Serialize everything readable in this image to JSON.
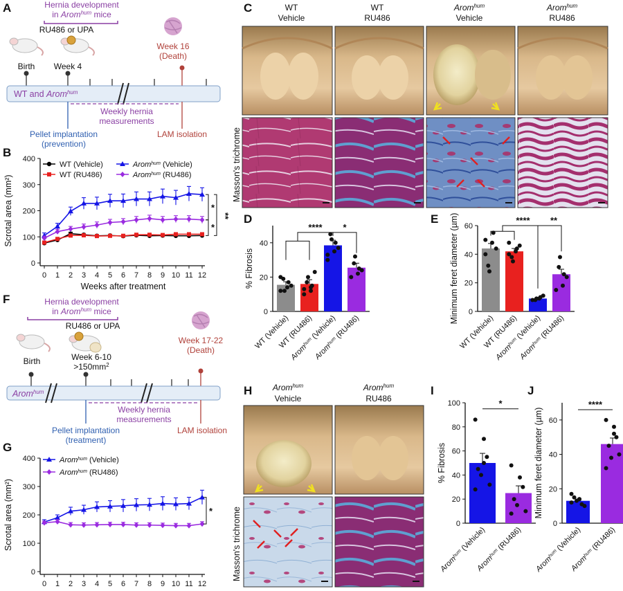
{
  "panels": {
    "A": "A",
    "B": "B",
    "C": "C",
    "D": "D",
    "E": "E",
    "F": "F",
    "G": "G",
    "H": "H",
    "I": "I",
    "J": "J"
  },
  "colors": {
    "wt_vehicle": "#000000",
    "wt_ru486": "#e8211f",
    "arom_vehicle": "#1515e6",
    "arom_ru486": "#9a2be0",
    "wt_bar": "#8c8c8c",
    "purple_text": "#8a3fa3",
    "blue_text": "#2f5fb0",
    "red_text": "#b0413a",
    "timeline_fill": "#e4edf7",
    "timeline_stroke": "#7f9fc7"
  },
  "timeline_a": {
    "dev_line1": "Hernia development",
    "dev_line2_pre": "in ",
    "dev_line2_sup": "hum",
    "dev_line2_post": " mice",
    "dev_line2_word": "Arom",
    "drug": "RU486 or UPA",
    "birth": "Birth",
    "week4": "Week 4",
    "death1": "Week 16",
    "death2": "(Death)",
    "bar_pre": "WT and ",
    "bar_word": "Arom",
    "bar_sup": "hum",
    "weekly1": "Weekly hernia",
    "weekly2": "measurements",
    "pellet1": "Pellet implantation",
    "pellet2": "(prevention)",
    "lam": "LAM isolation"
  },
  "timeline_f": {
    "dev_line1": "Hernia development",
    "dev_line2_pre": "in ",
    "dev_line2_word": "Arom",
    "dev_line2_sup": "hum",
    "dev_line2_post": " mice",
    "drug": "RU486 or UPA",
    "birth": "Birth",
    "week1": "Week 6-10",
    "week2": ">150mm",
    "death1": "Week 17-22",
    "death2": "(Death)",
    "bar_word": "Arom",
    "bar_sup": "hum",
    "weekly1": "Weekly hernia",
    "weekly2": "measurements",
    "pellet1": "Pellet implantation",
    "pellet2": "(treatment)",
    "lam": "LAM isolation"
  },
  "panel_c": {
    "cols": [
      {
        "l1": "WT",
        "l2": "Vehicle"
      },
      {
        "l1": "WT",
        "l2": "RU486"
      },
      {
        "l1": "Arom",
        "sup": "hum",
        "l2": "Vehicle"
      },
      {
        "l1": "Arom",
        "sup": "hum",
        "l2": "RU486"
      }
    ],
    "row_label": "Masson's trichrome"
  },
  "panel_h": {
    "cols": [
      {
        "l1": "Arom",
        "sup": "hum",
        "l2": "Vehicle"
      },
      {
        "l1": "Arom",
        "sup": "hum",
        "l2": "RU486"
      }
    ],
    "row_label": "Masson's trichrome"
  },
  "chart_data": [
    {
      "id": "B",
      "type": "line",
      "xlabel": "Weeks after treatment",
      "ylabel": "Scrotal area (mm²)",
      "xlim": [
        0,
        12
      ],
      "ylim": [
        0,
        400
      ],
      "yticks": [
        0,
        100,
        200,
        300,
        400
      ],
      "xticks": [
        0,
        1,
        2,
        3,
        4,
        5,
        6,
        7,
        8,
        9,
        10,
        11,
        12
      ],
      "x": [
        0,
        1,
        2,
        3,
        4,
        5,
        6,
        7,
        8,
        9,
        10,
        11,
        12
      ],
      "series": [
        {
          "name": "WT (Vehicle)",
          "values": [
            76,
            88,
            112,
            108,
            104,
            105,
            103,
            106,
            104,
            105,
            104,
            104,
            105
          ],
          "err": [
            4,
            4,
            6,
            5,
            4,
            4,
            4,
            4,
            4,
            4,
            4,
            4,
            4
          ],
          "marker": "circle"
        },
        {
          "name": "WT (RU486)",
          "values": [
            78,
            92,
            105,
            106,
            103,
            104,
            104,
            108,
            108,
            107,
            110,
            110,
            110
          ],
          "err": [
            4,
            4,
            5,
            5,
            4,
            4,
            4,
            4,
            4,
            4,
            4,
            4,
            4
          ],
          "marker": "square"
        },
        {
          "name": "Arom(hum) (Vehicle)",
          "values": [
            105,
            140,
            198,
            228,
            228,
            238,
            238,
            245,
            245,
            255,
            250,
            265,
            262
          ],
          "err": [
            10,
            12,
            16,
            22,
            24,
            25,
            26,
            27,
            27,
            28,
            28,
            28,
            26
          ],
          "marker": "triangle"
        },
        {
          "name": "Arom(hum) (RU486)",
          "values": [
            95,
            120,
            130,
            138,
            145,
            155,
            158,
            165,
            170,
            165,
            168,
            168,
            165
          ],
          "err": [
            8,
            9,
            10,
            11,
            12,
            12,
            12,
            13,
            13,
            13,
            13,
            13,
            13
          ],
          "marker": "diamond"
        }
      ],
      "legend": [
        {
          "main": "WT (Vehicle)"
        },
        {
          "main": "WT (RU486)"
        },
        {
          "pre": "Arom",
          "sup": "hum",
          "post": " (Vehicle)"
        },
        {
          "pre": "Arom",
          "sup": "hum",
          "post": " (RU486)"
        }
      ],
      "sig": [
        "*",
        "**",
        "*"
      ]
    },
    {
      "id": "D",
      "type": "bar",
      "ylabel": "% Fibrosis",
      "ylim": [
        0,
        50
      ],
      "yticks": [
        0,
        20,
        40
      ],
      "categories": [
        {
          "main": "WT (Vehicle)"
        },
        {
          "main": "WT (RU486)"
        },
        {
          "pre": "Arom",
          "sup": "hum",
          "post": " (Vehicle)"
        },
        {
          "pre": "Arom",
          "sup": "hum",
          "post": " (RU486)"
        }
      ],
      "values": [
        15.5,
        16,
        38.5,
        25.5
      ],
      "err": [
        1.8,
        2.5,
        3,
        2.6
      ],
      "points": [
        [
          12,
          14,
          17,
          19,
          12,
          15,
          20
        ],
        [
          10,
          12,
          15,
          17,
          20,
          23,
          13,
          14
        ],
        [
          30,
          35,
          40,
          45,
          42,
          37,
          33
        ],
        [
          20,
          22,
          25,
          28,
          32,
          24
        ]
      ],
      "sig": [
        "****",
        "*"
      ]
    },
    {
      "id": "E",
      "type": "bar",
      "ylabel": "Minimum feret diameter (µm)",
      "ylim": [
        0,
        60
      ],
      "yticks": [
        0,
        20,
        40,
        60
      ],
      "categories": [
        {
          "main": "WT (Vehicle)"
        },
        {
          "main": "WT (RU486)"
        },
        {
          "pre": "Arom",
          "sup": "hum",
          "post": " (Vehicle)"
        },
        {
          "pre": "Arom",
          "sup": "hum",
          "post": " (RU486)"
        }
      ],
      "values": [
        44,
        42,
        9,
        26
      ],
      "err": [
        3.5,
        2,
        0.7,
        3.5
      ],
      "points": [
        [
          50,
          48,
          55,
          32,
          28,
          44,
          40
        ],
        [
          48,
          42,
          44,
          38,
          35,
          46,
          40
        ],
        [
          8,
          9,
          10,
          8,
          9,
          11
        ],
        [
          15,
          18,
          26,
          31,
          38,
          24
        ]
      ],
      "sig": [
        "****",
        "**"
      ]
    },
    {
      "id": "G",
      "type": "line",
      "xlabel": "Weeks after treatment",
      "ylabel": "Scrotal area (mm²)",
      "xlim": [
        0,
        12
      ],
      "ylim": [
        0,
        400
      ],
      "yticks": [
        0,
        100,
        200,
        300,
        400
      ],
      "xticks": [
        0,
        1,
        2,
        3,
        4,
        5,
        6,
        7,
        8,
        9,
        10,
        11,
        12
      ],
      "x": [
        0,
        1,
        2,
        3,
        4,
        5,
        6,
        7,
        8,
        9,
        10,
        11,
        12
      ],
      "series": [
        {
          "name": "Arom(hum) (Vehicle)",
          "values": [
            175,
            190,
            213,
            218,
            228,
            230,
            232,
            235,
            236,
            240,
            238,
            240,
            262
          ],
          "err": [
            8,
            10,
            14,
            16,
            18,
            20,
            22,
            22,
            22,
            24,
            22,
            22,
            25
          ],
          "marker": "triangle"
        },
        {
          "name": "Arom(hum) (RU486)",
          "values": [
            172,
            176,
            165,
            164,
            165,
            166,
            166,
            164,
            164,
            163,
            162,
            162,
            168
          ],
          "err": [
            6,
            7,
            8,
            8,
            8,
            8,
            8,
            8,
            8,
            8,
            8,
            8,
            8
          ],
          "marker": "diamond"
        }
      ],
      "legend": [
        {
          "pre": "Arom",
          "sup": "hum",
          "post": " (Vehicle)"
        },
        {
          "pre": "Arom",
          "sup": "hum",
          "post": " (RU486)"
        }
      ],
      "sig": [
        "*"
      ]
    },
    {
      "id": "I",
      "type": "bar",
      "ylabel": "% Fibrosis",
      "ylim": [
        0,
        100
      ],
      "yticks": [
        0,
        20,
        40,
        60,
        80,
        100
      ],
      "categories": [
        {
          "pre": "Arom",
          "sup": "hum",
          "post": " (Vehicle)"
        },
        {
          "pre": "Arom",
          "sup": "hum",
          "post": " (RU486)"
        }
      ],
      "values": [
        50,
        25
      ],
      "err": [
        8,
        6
      ],
      "points": [
        [
          86,
          70,
          55,
          45,
          40,
          32,
          28,
          50
        ],
        [
          48,
          38,
          30,
          20,
          15,
          10,
          8
        ]
      ],
      "sig": [
        "*"
      ]
    },
    {
      "id": "J",
      "type": "bar",
      "ylabel": "Minimum feret diameter (µm)",
      "ylim": [
        0,
        70
      ],
      "yticks": [
        0,
        20,
        40,
        60
      ],
      "categories": [
        {
          "pre": "Arom",
          "sup": "hum",
          "post": " (Vehicle)"
        },
        {
          "pre": "Arom",
          "sup": "hum",
          "post": " (RU486)"
        }
      ],
      "values": [
        13,
        46
      ],
      "err": [
        1,
        3.5
      ],
      "points": [
        [
          12,
          14,
          11,
          15,
          13,
          10,
          17,
          14
        ],
        [
          60,
          56,
          50,
          45,
          38,
          40,
          32,
          52
        ]
      ],
      "sig": [
        "****"
      ]
    }
  ]
}
